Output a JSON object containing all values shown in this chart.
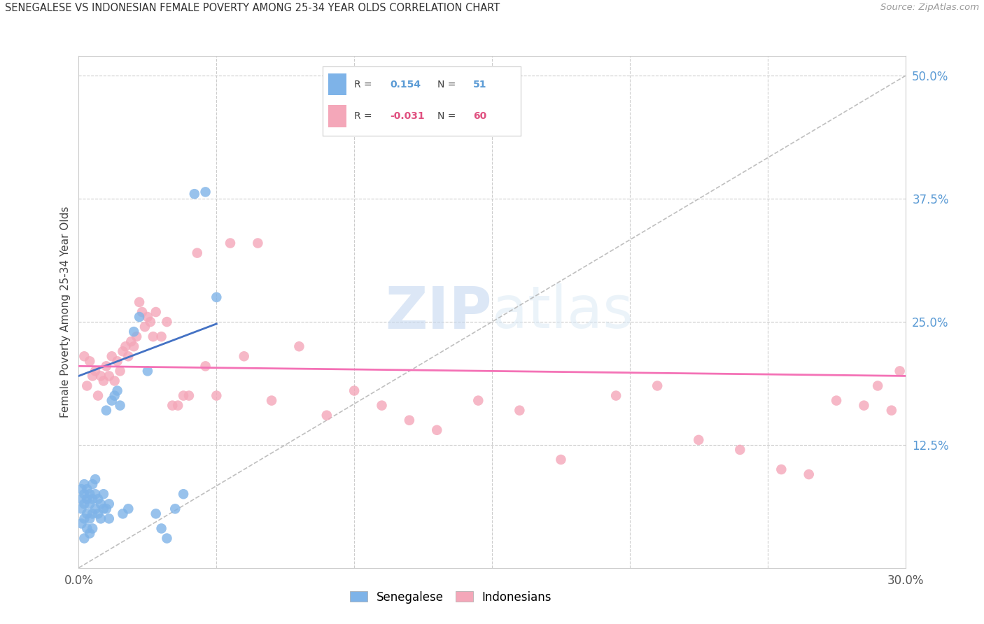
{
  "title": "SENEGALESE VS INDONESIAN FEMALE POVERTY AMONG 25-34 YEAR OLDS CORRELATION CHART",
  "source": "Source: ZipAtlas.com",
  "ylabel": "Female Poverty Among 25-34 Year Olds",
  "xlim": [
    0.0,
    0.3
  ],
  "ylim": [
    0.0,
    0.52
  ],
  "yticks_right": [
    0.0,
    0.125,
    0.25,
    0.375,
    0.5
  ],
  "yticklabels_right": [
    "",
    "12.5%",
    "25.0%",
    "37.5%",
    "50.0%"
  ],
  "grid_color": "#cccccc",
  "background_color": "#ffffff",
  "senegalese_color": "#7eb3e8",
  "indonesian_color": "#f4a7b9",
  "senegalese_R": 0.154,
  "senegalese_N": 51,
  "indonesian_R": -0.031,
  "indonesian_N": 60,
  "senegalese_line_color": "#4472c4",
  "indonesian_line_color": "#f472b6",
  "diagonal_color": "#b0b0b0",
  "watermark_zip": "ZIP",
  "watermark_atlas": "atlas",
  "senegalese_x": [
    0.001,
    0.001,
    0.001,
    0.001,
    0.002,
    0.002,
    0.002,
    0.002,
    0.002,
    0.003,
    0.003,
    0.003,
    0.003,
    0.004,
    0.004,
    0.004,
    0.004,
    0.005,
    0.005,
    0.005,
    0.005,
    0.006,
    0.006,
    0.006,
    0.007,
    0.007,
    0.008,
    0.008,
    0.009,
    0.009,
    0.01,
    0.01,
    0.011,
    0.011,
    0.012,
    0.013,
    0.014,
    0.015,
    0.016,
    0.018,
    0.02,
    0.022,
    0.025,
    0.028,
    0.03,
    0.032,
    0.035,
    0.038,
    0.042,
    0.046,
    0.05
  ],
  "senegalese_y": [
    0.045,
    0.06,
    0.07,
    0.08,
    0.03,
    0.05,
    0.065,
    0.075,
    0.085,
    0.04,
    0.055,
    0.07,
    0.08,
    0.035,
    0.05,
    0.065,
    0.075,
    0.04,
    0.055,
    0.07,
    0.085,
    0.06,
    0.075,
    0.09,
    0.055,
    0.07,
    0.05,
    0.065,
    0.06,
    0.075,
    0.06,
    0.16,
    0.05,
    0.065,
    0.17,
    0.175,
    0.18,
    0.165,
    0.055,
    0.06,
    0.24,
    0.255,
    0.2,
    0.055,
    0.04,
    0.03,
    0.06,
    0.075,
    0.38,
    0.382,
    0.275
  ],
  "indonesian_x": [
    0.002,
    0.003,
    0.004,
    0.005,
    0.006,
    0.007,
    0.008,
    0.009,
    0.01,
    0.011,
    0.012,
    0.013,
    0.014,
    0.015,
    0.016,
    0.017,
    0.018,
    0.019,
    0.02,
    0.021,
    0.022,
    0.023,
    0.024,
    0.025,
    0.026,
    0.027,
    0.028,
    0.03,
    0.032,
    0.034,
    0.036,
    0.038,
    0.04,
    0.043,
    0.046,
    0.05,
    0.055,
    0.06,
    0.065,
    0.07,
    0.08,
    0.09,
    0.1,
    0.11,
    0.12,
    0.13,
    0.145,
    0.16,
    0.175,
    0.195,
    0.21,
    0.225,
    0.24,
    0.255,
    0.265,
    0.275,
    0.285,
    0.29,
    0.295,
    0.298
  ],
  "indonesian_y": [
    0.215,
    0.185,
    0.21,
    0.195,
    0.2,
    0.175,
    0.195,
    0.19,
    0.205,
    0.195,
    0.215,
    0.19,
    0.21,
    0.2,
    0.22,
    0.225,
    0.215,
    0.23,
    0.225,
    0.235,
    0.27,
    0.26,
    0.245,
    0.255,
    0.25,
    0.235,
    0.26,
    0.235,
    0.25,
    0.165,
    0.165,
    0.175,
    0.175,
    0.32,
    0.205,
    0.175,
    0.33,
    0.215,
    0.33,
    0.17,
    0.225,
    0.155,
    0.18,
    0.165,
    0.15,
    0.14,
    0.17,
    0.16,
    0.11,
    0.175,
    0.185,
    0.13,
    0.12,
    0.1,
    0.095,
    0.17,
    0.165,
    0.185,
    0.16,
    0.2
  ]
}
